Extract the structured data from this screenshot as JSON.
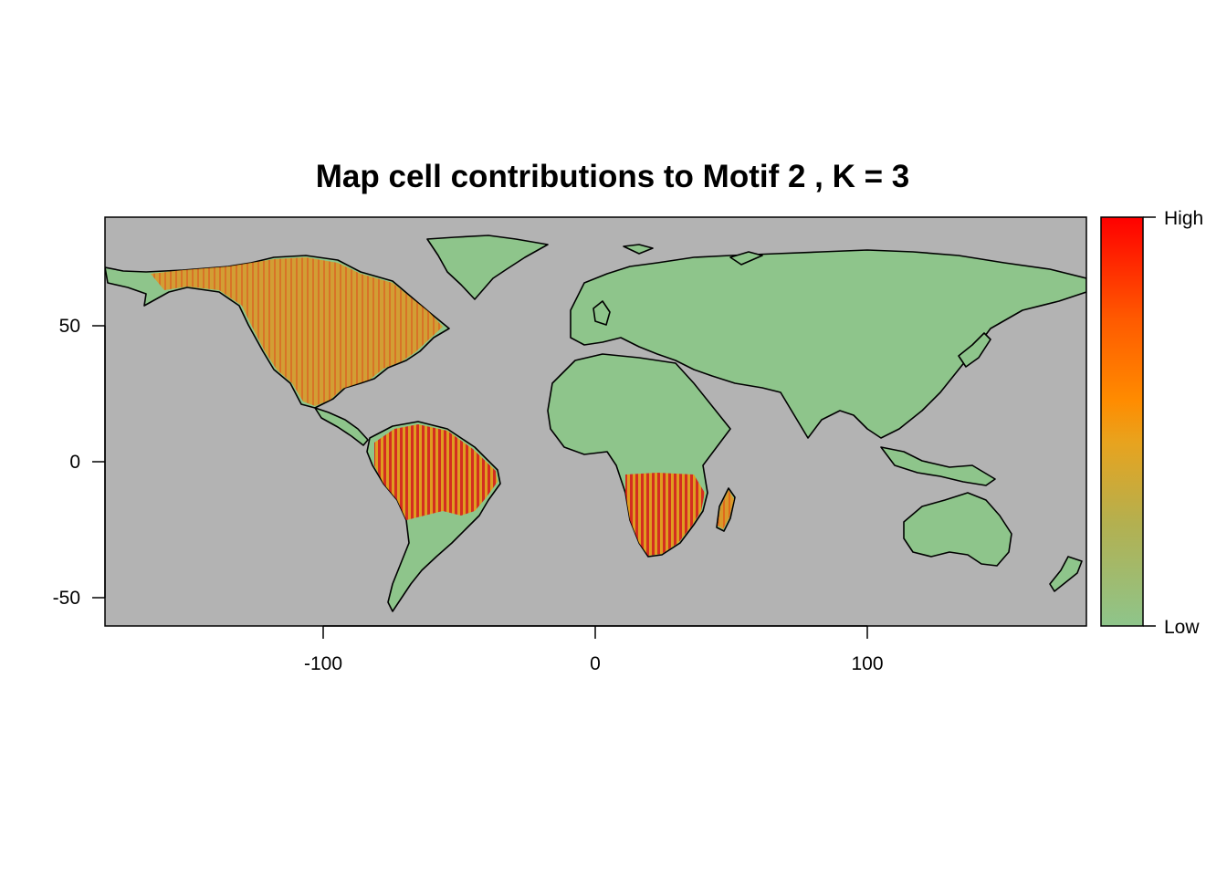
{
  "title": "Map cell contributions to Motif  2 , K = 3",
  "legend": {
    "high_label": "High",
    "low_label": "Low",
    "colors": [
      "#8ec58b",
      "#b3b050",
      "#e8a31e",
      "#ff8c00",
      "#ff5a00",
      "#ff0000"
    ]
  },
  "colors": {
    "ocean": "#b3b3b3",
    "land": "#8ec58b",
    "frame": "#000000",
    "mid": "#e39c1e",
    "high": "#e03015"
  },
  "chart_data": {
    "type": "heatmap",
    "title": "Map cell contributions to Motif  2 , K = 3",
    "xlabel": "",
    "ylabel": "",
    "xlim": [
      -180,
      180
    ],
    "ylim": [
      -60,
      90
    ],
    "x_ticks": [
      -100,
      0,
      100
    ],
    "x_tick_labels": [
      "-100",
      "0",
      "100"
    ],
    "y_ticks": [
      -50,
      0,
      50
    ],
    "y_tick_labels": [
      "-50",
      "0",
      "50"
    ],
    "grid": false,
    "legend": {
      "type": "colorbar",
      "placement": "right",
      "labels": [
        "High",
        "Low"
      ]
    },
    "regions": [
      {
        "name": "North America",
        "lon": [
          -165,
          -55
        ],
        "lat": [
          15,
          72
        ],
        "level": "medium"
      },
      {
        "name": "Amazon basin",
        "lon": [
          -80,
          -35
        ],
        "lat": [
          -18,
          10
        ],
        "level": "high"
      },
      {
        "name": "Southern Africa",
        "lon": [
          12,
          40
        ],
        "lat": [
          -35,
          -8
        ],
        "level": "high"
      },
      {
        "name": "Madagascar",
        "lon": [
          43,
          50
        ],
        "lat": [
          -25,
          -12
        ],
        "level": "medium"
      }
    ]
  }
}
